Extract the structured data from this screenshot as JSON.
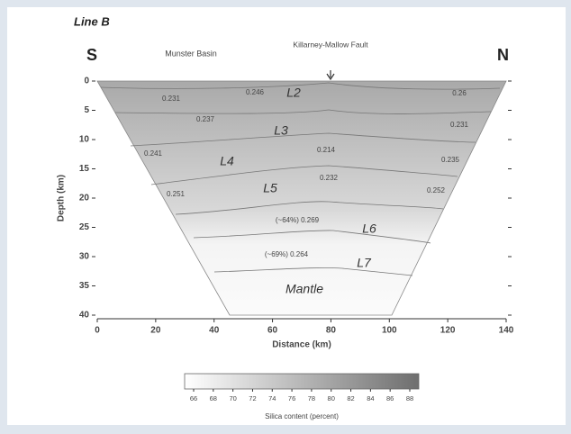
{
  "chart_data": {
    "type": "section",
    "title": "Line B",
    "left_label": "S",
    "right_label": "N",
    "top_labels": [
      "Munster Basin",
      "Killarney-Mallow Fault"
    ],
    "xlabel": "Distance (km)",
    "ylabel": "Depth (km)",
    "xlim": [
      0,
      140
    ],
    "xticks": [
      0,
      20,
      40,
      60,
      80,
      100,
      120,
      140
    ],
    "ylim": [
      0,
      40
    ],
    "yticks": [
      0,
      5,
      10,
      15,
      20,
      25,
      30,
      35,
      40
    ],
    "annotations": [
      "0.231",
      "0.246",
      "L2",
      "0.26",
      "0.237",
      "L3",
      "0.231",
      "0.241",
      "L4",
      "0.214",
      "0.235",
      "L5",
      "0.232",
      "0.251",
      "0.252",
      "(~64%) 0.269",
      "L6",
      "(~69%) 0.264",
      "L7",
      "Mantle"
    ],
    "colorbar": {
      "label": "Silica content (percent)",
      "lim": [
        66,
        88
      ],
      "ticks": [
        66,
        68,
        70,
        72,
        74,
        76,
        78,
        80,
        82,
        84,
        86,
        88
      ]
    }
  }
}
